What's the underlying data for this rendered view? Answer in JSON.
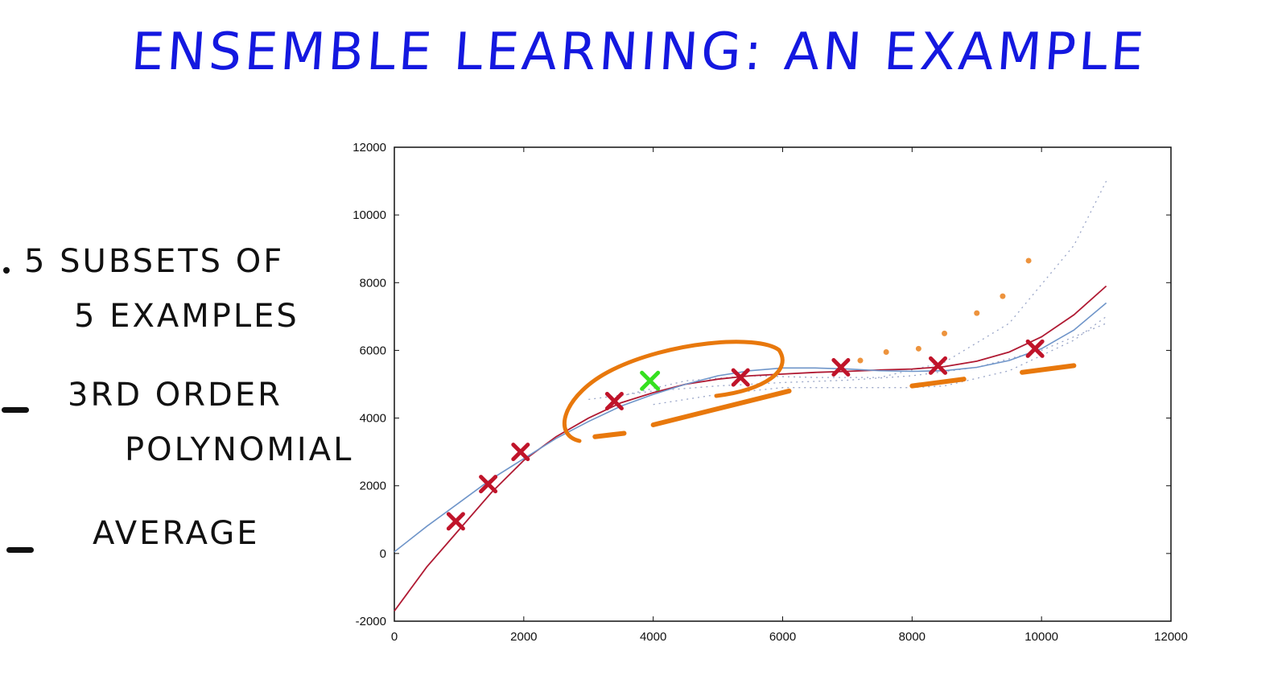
{
  "title": "ENSEMBLE LEARNING: AN EXAMPLE",
  "notes": {
    "line1a": "5 SUBSETS OF",
    "line1b": "5 EXAMPLES",
    "line2a": "3RD ORDER",
    "line2b": "POLYNOMIAL",
    "line3": "AVERAGE"
  },
  "colors": {
    "title": "#1418e0",
    "points": "#c0142a",
    "highlight_point": "#35e020",
    "red_curve": "#b01a33",
    "blue_curve": "#6f95c9",
    "dotted": "#9aa6c8",
    "annotation": "#e8780c"
  },
  "chart_data": {
    "type": "scatter",
    "xlim": [
      0,
      12000
    ],
    "ylim": [
      -2000,
      12000
    ],
    "xticks": [
      "0",
      "2000",
      "4000",
      "6000",
      "8000",
      "10000",
      "12000"
    ],
    "yticks": [
      "-2000",
      "0",
      "2000",
      "4000",
      "6000",
      "8000",
      "10000",
      "12000"
    ],
    "grid": false,
    "points": {
      "x": [
        950,
        1450,
        1950,
        3400,
        5350,
        6900,
        8400,
        9900
      ],
      "y": [
        950,
        2050,
        3000,
        4500,
        5200,
        5500,
        5550,
        6050
      ]
    },
    "highlight_point": {
      "x": 3950,
      "y": 5100
    },
    "series": [
      {
        "x": [
          0,
          500,
          1000,
          1500,
          2000,
          2500,
          3000,
          3500,
          4000,
          4500,
          5000,
          5500,
          6000,
          6500,
          7000,
          7500,
          8000,
          8500,
          9000,
          9500,
          10000,
          10500,
          11000
        ],
        "y": [
          -1700,
          -400,
          700,
          1800,
          2750,
          3450,
          4000,
          4450,
          4750,
          5000,
          5150,
          5250,
          5300,
          5350,
          5380,
          5420,
          5450,
          5520,
          5680,
          5950,
          6400,
          7050,
          7900
        ]
      },
      {
        "x": [
          0,
          500,
          1000,
          1500,
          2000,
          2500,
          3000,
          3500,
          4000,
          4500,
          5000,
          5500,
          6000,
          6500,
          7000,
          7500,
          8000,
          8500,
          9000,
          9500,
          10000,
          10500,
          11000
        ],
        "y": [
          50,
          800,
          1500,
          2200,
          2800,
          3400,
          3900,
          4350,
          4700,
          5000,
          5250,
          5400,
          5480,
          5480,
          5450,
          5400,
          5380,
          5400,
          5500,
          5700,
          6050,
          6600,
          7400
        ]
      },
      {
        "x": [
          3000,
          4000,
          5000,
          6000,
          7000,
          8000,
          9000,
          10000,
          11000
        ],
        "y": [
          4550,
          4800,
          4950,
          5050,
          5120,
          5250,
          5500,
          6000,
          6800
        ]
      },
      {
        "x": [
          3500,
          4500,
          5500,
          6500,
          7500,
          8500,
          9500,
          10500,
          11000
        ],
        "y": [
          4650,
          5100,
          5250,
          5200,
          5200,
          5650,
          6800,
          9100,
          11000
        ]
      },
      {
        "x": [
          4000,
          5000,
          6000,
          7000,
          8000,
          8500,
          9500,
          10500,
          11000
        ],
        "y": [
          4400,
          4700,
          4900,
          4900,
          4900,
          4950,
          5400,
          6300,
          7000
        ]
      }
    ]
  }
}
